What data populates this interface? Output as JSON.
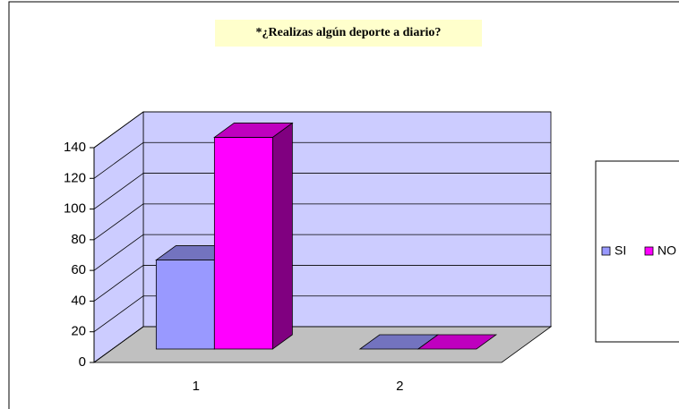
{
  "chart_data": {
    "type": "bar",
    "title": "*¿Realizas algún deporte a diario?",
    "categories": [
      "1",
      "2"
    ],
    "series": [
      {
        "name": "SI",
        "color": "#9999ff",
        "values": [
          58,
          0
        ]
      },
      {
        "name": "NO",
        "color": "#ff00ff",
        "values": [
          138,
          0
        ]
      }
    ],
    "ylim": [
      0,
      140
    ],
    "yticks": [
      0,
      20,
      40,
      60,
      80,
      100,
      120,
      140
    ],
    "grid": true,
    "legend": "right"
  }
}
